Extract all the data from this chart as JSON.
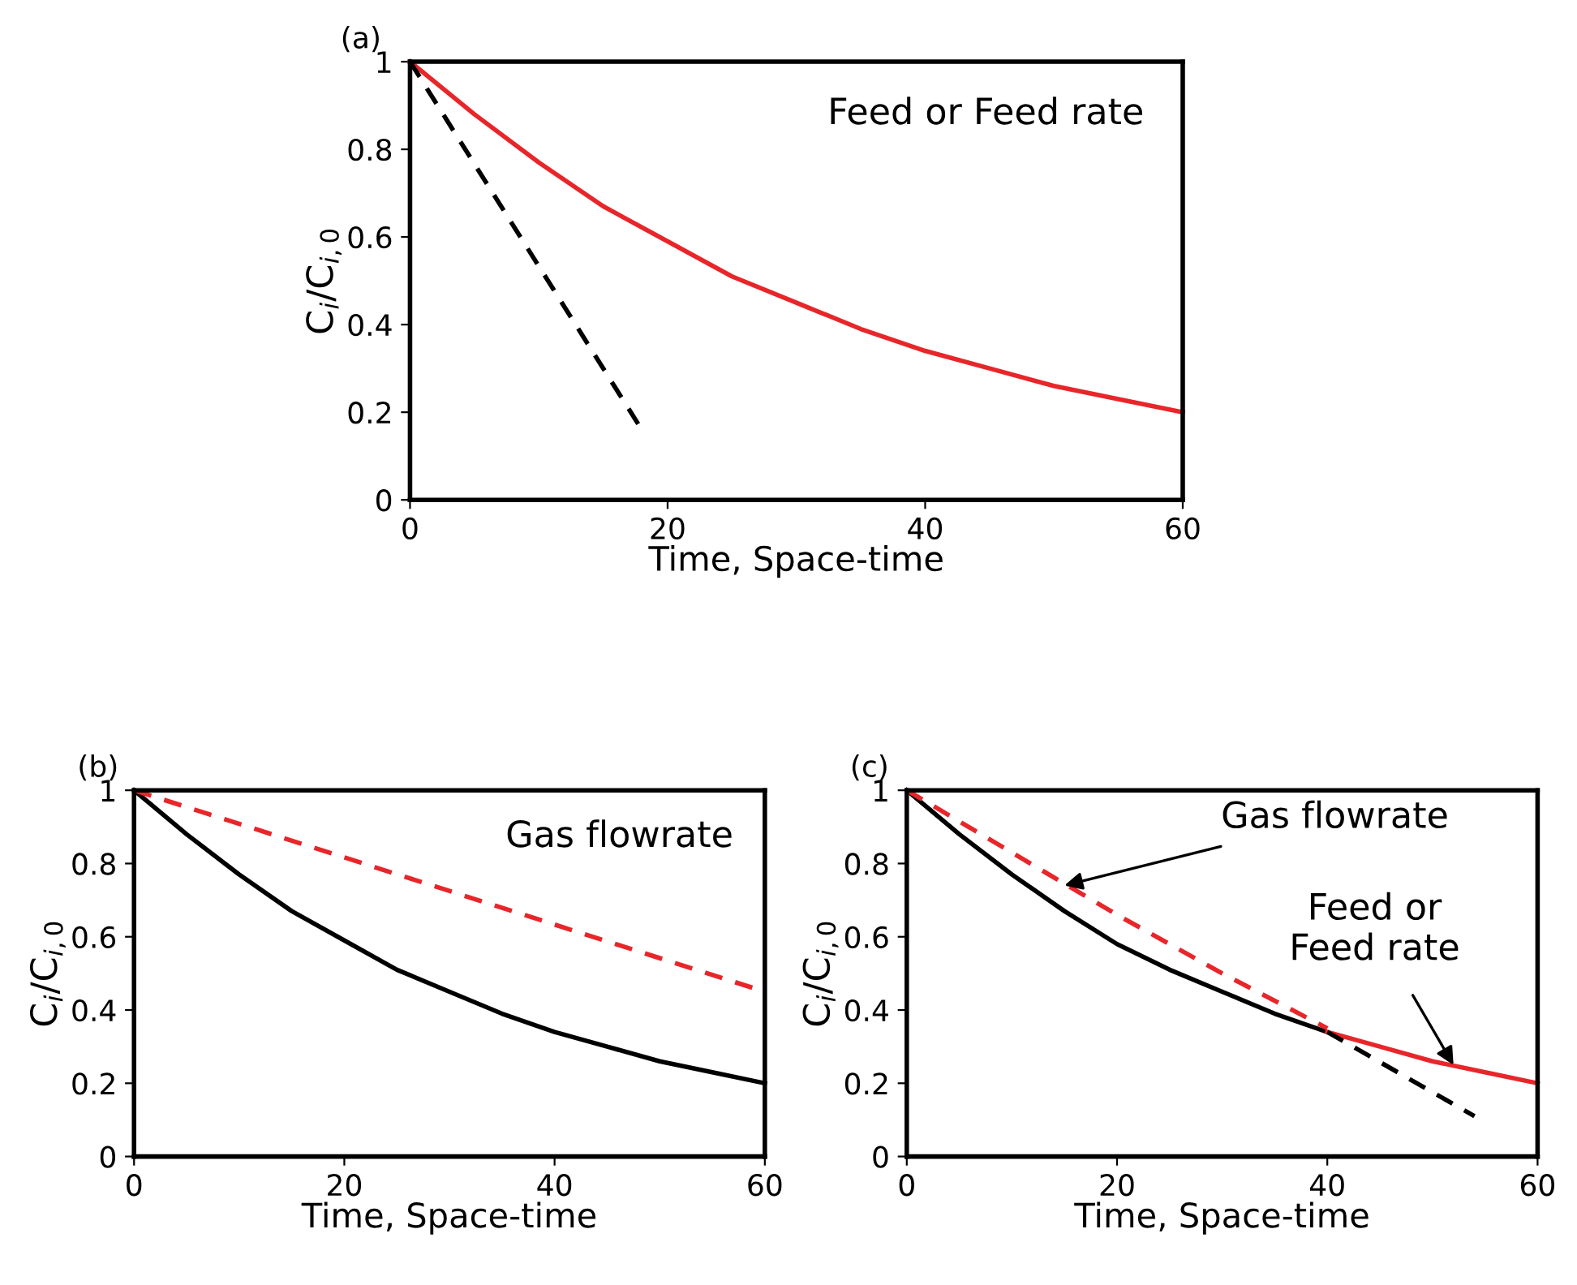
{
  "chart_data": [
    {
      "type": "line",
      "title": "(a)",
      "xlabel": "Time, Space-time",
      "ylabel": "C$_{i}$/C$_{i,0}$",
      "xlim": [
        0,
        60
      ],
      "ylim": [
        0,
        1
      ],
      "xticks": [
        0,
        20,
        40,
        60
      ],
      "yticks": [
        0,
        0.2,
        0.4,
        0.6,
        0.8,
        1
      ],
      "grid": false,
      "legend": false,
      "marker": "none",
      "annotations": [
        "Feed or Feed rate"
      ],
      "series": [
        {
          "color": "#e8262a",
          "line_style": "solid",
          "x": [
            0,
            5,
            10,
            15,
            20,
            25,
            30,
            35,
            40,
            45,
            50,
            55,
            60
          ],
          "values": [
            1,
            0.88,
            0.77,
            0.67,
            0.59,
            0.51,
            0.45,
            0.39,
            0.34,
            0.3,
            0.26,
            0.23,
            0.2
          ]
        },
        {
          "color": "#000000",
          "line_style": "dashed",
          "x": [
            0,
            18
          ],
          "values": [
            1,
            0.16
          ]
        }
      ]
    },
    {
      "type": "line",
      "title": "(b)",
      "xlabel": "Time, Space-time",
      "ylabel": "C$_{i}$/C$_{i,0}$",
      "xlim": [
        0,
        60
      ],
      "ylim": [
        0,
        1
      ],
      "xticks": [
        0,
        20,
        40,
        60
      ],
      "yticks": [
        0,
        0.2,
        0.4,
        0.6,
        0.8,
        1
      ],
      "grid": false,
      "legend": false,
      "marker": "none",
      "annotations": [
        "Gas flowrate"
      ],
      "series": [
        {
          "color": "#000000",
          "line_style": "solid",
          "x": [
            0,
            5,
            10,
            15,
            20,
            25,
            30,
            35,
            40,
            45,
            50,
            55,
            60
          ],
          "values": [
            1,
            0.88,
            0.77,
            0.67,
            0.59,
            0.51,
            0.45,
            0.39,
            0.34,
            0.3,
            0.26,
            0.23,
            0.2
          ]
        },
        {
          "color": "#e8262a",
          "line_style": "dashed",
          "x": [
            0,
            60
          ],
          "values": [
            1,
            0.45
          ]
        }
      ]
    },
    {
      "type": "line",
      "title": "(c)",
      "xlabel": "Time, Space-time",
      "ylabel": "C$_{i}$/C$_{i,0}$",
      "xlim": [
        0,
        60
      ],
      "ylim": [
        0,
        1
      ],
      "xticks": [
        0,
        20,
        40,
        60
      ],
      "yticks": [
        0,
        0.2,
        0.4,
        0.6,
        0.8,
        1
      ],
      "grid": false,
      "legend": false,
      "marker": "none",
      "annotations": [
        {
          "text": "Gas flowrate",
          "x": 15,
          "y": 0.74
        },
        {
          "text": "Feed or\nFeed rate",
          "x": 52,
          "y": 0.25
        }
      ],
      "series": [
        {
          "color": "#000000",
          "line_style": "solid",
          "x": [
            0,
            5,
            10,
            15,
            20,
            25,
            30,
            35,
            40
          ],
          "values": [
            1,
            0.88,
            0.77,
            0.67,
            0.58,
            0.51,
            0.45,
            0.39,
            0.34
          ]
        },
        {
          "color": "#e8262a",
          "line_style": "dashed",
          "x": [
            0,
            10,
            20,
            30,
            40
          ],
          "values": [
            1,
            0.83,
            0.66,
            0.5,
            0.35
          ]
        },
        {
          "color": "#e8262a",
          "line_style": "solid",
          "x": [
            40,
            45,
            50,
            55,
            60
          ],
          "values": [
            0.34,
            0.3,
            0.26,
            0.23,
            0.2
          ]
        },
        {
          "color": "#000000",
          "line_style": "dashed",
          "x": [
            40,
            54
          ],
          "values": [
            0.34,
            0.11
          ]
        }
      ]
    }
  ]
}
